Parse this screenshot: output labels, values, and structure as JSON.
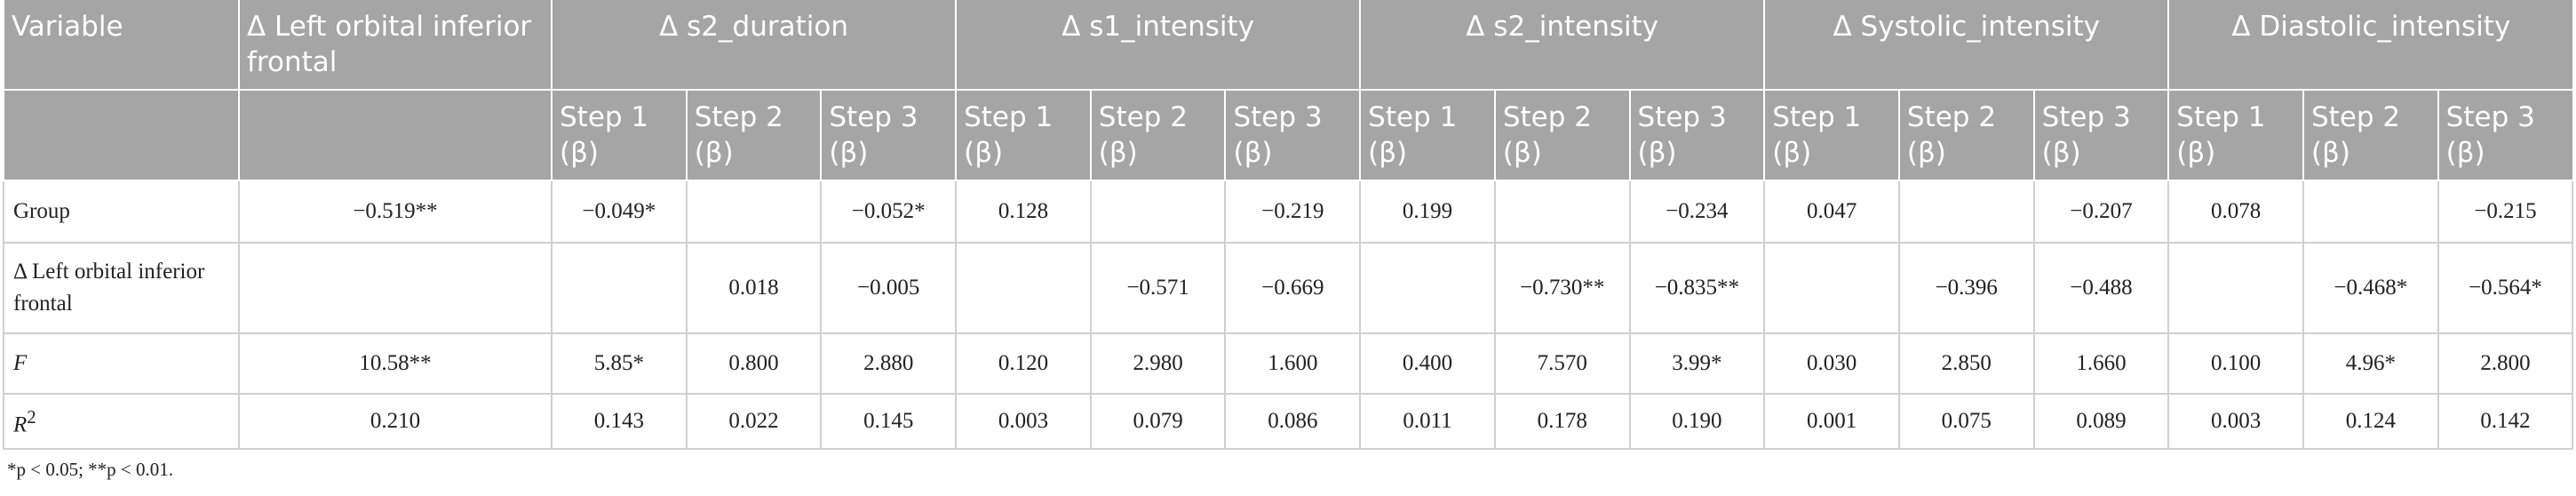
{
  "header": {
    "row1": [
      "Variable",
      "Δ Left orbital inferior frontal",
      "Δ s2_duration",
      "Δ s1_intensity",
      "Δ s2_intensity",
      "Δ Systolic_intensity",
      "Δ Diastolic_intensity"
    ],
    "steps": [
      "Step 1 (β)",
      "Step 2 (β)",
      "Step 3 (β)"
    ]
  },
  "table": {
    "rows": [
      {
        "label": "Group",
        "cells": [
          "−0.519**",
          "−0.049*",
          null,
          "−0.052*",
          "0.128",
          null,
          "−0.219",
          "0.199",
          null,
          "−0.234",
          "0.047",
          null,
          "−0.207",
          "0.078",
          null,
          "−0.215"
        ]
      },
      {
        "label": "Δ Left orbital inferior frontal",
        "cells": [
          null,
          null,
          "0.018",
          "−0.005",
          null,
          "−0.571",
          "−0.669",
          null,
          "−0.730**",
          "−0.835**",
          null,
          "−0.396",
          "−0.488",
          null,
          "−0.468*",
          "−0.564*"
        ]
      },
      {
        "label": "F",
        "italic": true,
        "cells": [
          "10.58**",
          "5.85*",
          "0.800",
          "2.880",
          "0.120",
          "2.980",
          "1.600",
          "0.400",
          "7.570",
          "3.99*",
          "0.030",
          "2.850",
          "1.660",
          "0.100",
          "4.96*",
          "2.800"
        ]
      },
      {
        "label": "R",
        "sup": "2",
        "italic": true,
        "cells": [
          "0.210",
          "0.143",
          "0.022",
          "0.145",
          "0.003",
          "0.079",
          "0.086",
          "0.011",
          "0.178",
          "0.190",
          "0.001",
          "0.075",
          "0.089",
          "0.003",
          "0.124",
          "0.142"
        ]
      }
    ]
  },
  "footnote": "*p < 0.05; **p < 0.01."
}
